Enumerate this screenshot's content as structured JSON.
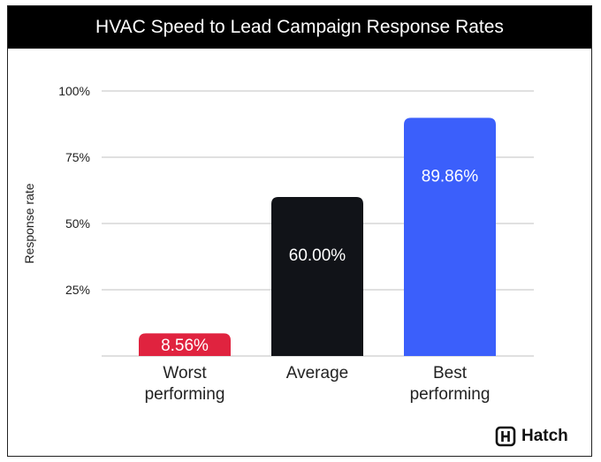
{
  "chart_data": {
    "type": "bar",
    "title": "HVAC Speed to Lead Campaign Response Rates",
    "ylabel": "Response rate",
    "xlabel": "",
    "ylim": [
      0,
      100
    ],
    "yticks": [
      25,
      50,
      75,
      100
    ],
    "ytick_labels": [
      "25%",
      "50%",
      "75%",
      "100%"
    ],
    "grid": true,
    "categories": [
      [
        "Worst",
        "performing"
      ],
      [
        "Average"
      ],
      [
        "Best",
        "performing"
      ]
    ],
    "values": [
      8.56,
      60.0,
      89.86
    ],
    "data_labels": [
      "8.56%",
      "60.00%",
      "89.86%"
    ],
    "colors": [
      "#e0233f",
      "#111318",
      "#3b5ffb"
    ]
  },
  "brand": {
    "name": "Hatch",
    "icon": "hatch-h-logo-icon"
  }
}
